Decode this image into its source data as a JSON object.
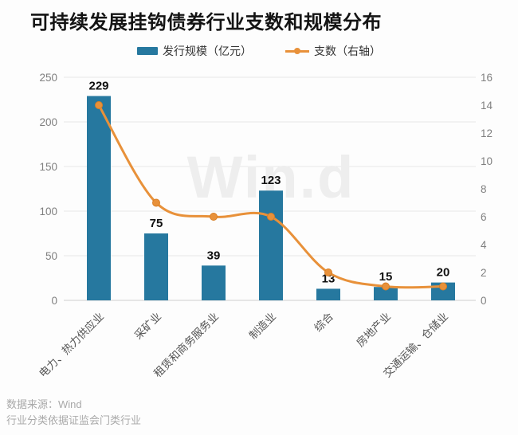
{
  "header": {
    "title": "可持续发展挂钩债券行业支数和规模分布"
  },
  "watermark": "Win.d",
  "footer": {
    "source_line": "数据来源：Wind",
    "note_line": "行业分类依据证监会门类行业"
  },
  "colors": {
    "bar": "#26789F",
    "line": "#E8913A",
    "marker_edge": "#D97F26",
    "grid": "#e8e8e8",
    "zero_line": "#cfcfcf",
    "axis_text": "#808080",
    "category_text": "#555555",
    "value_label": "#111111",
    "watermark": "#eeeeee"
  },
  "chart_data": {
    "type": "bar",
    "combo": "bar+line",
    "title": "可持续发展挂钩债券行业支数和规模分布",
    "categories": [
      "电力、热力供应业",
      "采矿业",
      "租赁和商务服务业",
      "制造业",
      "综合",
      "房地产业",
      "交通运输、仓储业"
    ],
    "series": [
      {
        "name": "发行规模（亿元）",
        "type": "bar",
        "axis": "left",
        "values": [
          229,
          75,
          39,
          123,
          13,
          15,
          20
        ]
      },
      {
        "name": "支数（右轴）",
        "type": "line",
        "axis": "right",
        "values": [
          14,
          7,
          6,
          6,
          2,
          1,
          1
        ]
      }
    ],
    "xlabel": "",
    "ylabel_left": "发行规模（亿元）",
    "ylabel_right": "支数",
    "left_axis": {
      "range": [
        0,
        250
      ],
      "ticks": [
        0,
        50,
        100,
        150,
        200,
        250
      ]
    },
    "right_axis": {
      "range": [
        0,
        16
      ],
      "ticks": [
        0,
        2,
        4,
        6,
        8,
        10,
        12,
        14,
        16
      ]
    },
    "grid": true,
    "legend_position": "top"
  }
}
